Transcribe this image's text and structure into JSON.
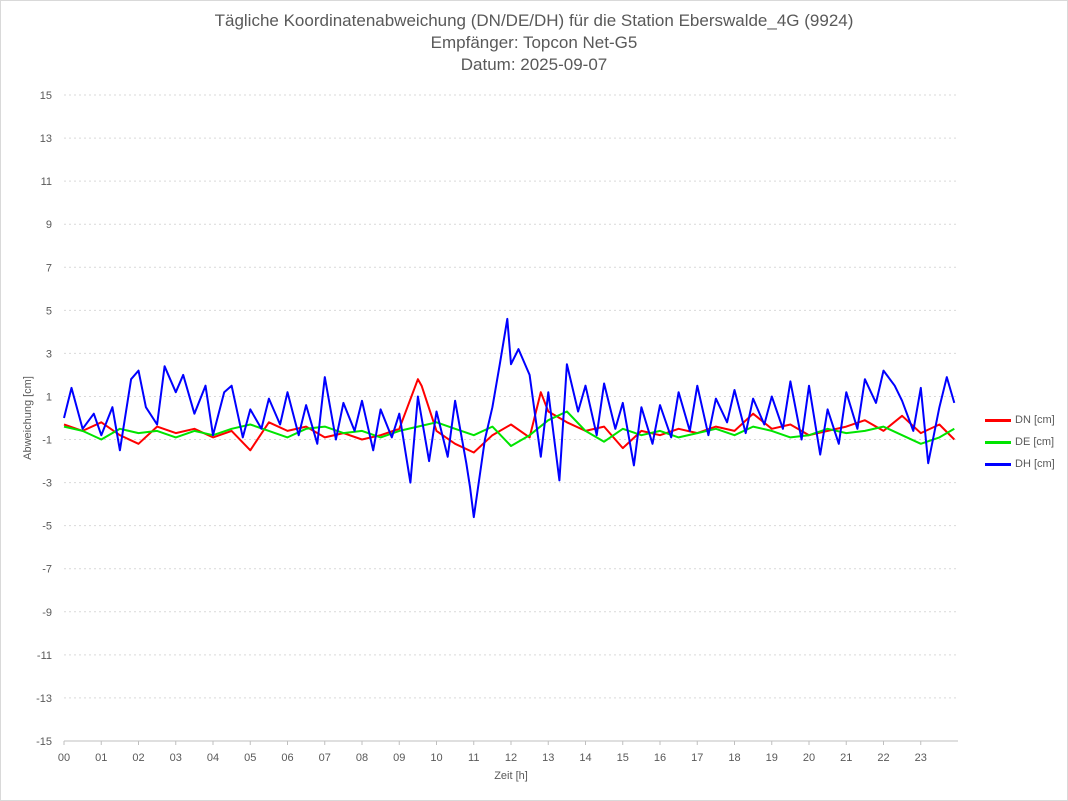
{
  "chart_data": {
    "type": "line",
    "title": [
      "Tägliche Koordinatenabweichung (DN/DE/DH) für die Station Eberswalde_4G (9924)",
      "Empfänger: Topcon Net-G5",
      "Datum: 2025-09-07"
    ],
    "xlabel": "Zeit [h]",
    "ylabel": "Abweichung [cm]",
    "xlim": [
      0,
      24
    ],
    "ylim": [
      -15,
      15
    ],
    "x_ticks": [
      "00",
      "01",
      "02",
      "03",
      "04",
      "05",
      "06",
      "07",
      "08",
      "09",
      "10",
      "11",
      "12",
      "13",
      "14",
      "15",
      "16",
      "17",
      "18",
      "19",
      "20",
      "21",
      "22",
      "23"
    ],
    "y_ticks": [
      "15",
      "13",
      "11",
      "9",
      "7",
      "5",
      "3",
      "1",
      "-1",
      "-3",
      "-5",
      "-7",
      "-9",
      "-11",
      "-13",
      "-15"
    ],
    "grid": true,
    "legend_position": "right",
    "series": [
      {
        "name": "DN [cm]",
        "color": "#ff0000",
        "x": [
          0,
          0.5,
          1,
          1.5,
          2,
          2.5,
          3,
          3.5,
          4,
          4.5,
          5,
          5.5,
          6,
          6.5,
          7,
          7.5,
          8,
          8.5,
          9,
          9.5,
          9.6,
          10,
          10.5,
          11,
          11.5,
          12,
          12.5,
          12.8,
          13,
          13.5,
          14,
          14.5,
          15,
          15.5,
          16,
          16.5,
          17,
          17.5,
          18,
          18.5,
          19,
          19.5,
          20,
          20.5,
          21,
          21.5,
          22,
          22.5,
          23,
          23.5,
          23.9
        ],
        "values": [
          -0.3,
          -0.6,
          -0.2,
          -0.8,
          -1.2,
          -0.4,
          -0.7,
          -0.5,
          -0.9,
          -0.6,
          -1.5,
          -0.2,
          -0.6,
          -0.4,
          -0.9,
          -0.7,
          -1.0,
          -0.8,
          -0.5,
          1.8,
          1.5,
          -0.6,
          -1.2,
          -1.6,
          -0.8,
          -0.3,
          -0.9,
          1.2,
          0.3,
          -0.2,
          -0.6,
          -0.4,
          -1.4,
          -0.6,
          -0.8,
          -0.5,
          -0.7,
          -0.4,
          -0.6,
          0.2,
          -0.5,
          -0.3,
          -0.8,
          -0.6,
          -0.4,
          -0.1,
          -0.6,
          0.1,
          -0.7,
          -0.3,
          -1.0
        ]
      },
      {
        "name": "DE [cm]",
        "color": "#00e400",
        "x": [
          0,
          0.5,
          1,
          1.5,
          2,
          2.5,
          3,
          3.5,
          4,
          4.5,
          5,
          5.5,
          6,
          6.5,
          7,
          7.5,
          8,
          8.5,
          9,
          9.5,
          10,
          10.5,
          11,
          11.5,
          12,
          12.5,
          13,
          13.5,
          14,
          14.5,
          15,
          15.5,
          16,
          16.5,
          17,
          17.5,
          18,
          18.5,
          19,
          19.5,
          20,
          20.5,
          21,
          21.5,
          22,
          22.5,
          23,
          23.5,
          23.9
        ],
        "values": [
          -0.4,
          -0.6,
          -1.0,
          -0.5,
          -0.7,
          -0.6,
          -0.9,
          -0.6,
          -0.8,
          -0.5,
          -0.3,
          -0.6,
          -0.9,
          -0.5,
          -0.4,
          -0.7,
          -0.6,
          -0.9,
          -0.6,
          -0.4,
          -0.2,
          -0.5,
          -0.8,
          -0.4,
          -1.3,
          -0.8,
          -0.1,
          0.3,
          -0.6,
          -1.1,
          -0.5,
          -0.8,
          -0.6,
          -0.9,
          -0.7,
          -0.5,
          -0.8,
          -0.4,
          -0.6,
          -0.9,
          -0.8,
          -0.5,
          -0.7,
          -0.6,
          -0.4,
          -0.8,
          -1.2,
          -0.9,
          -0.5
        ]
      },
      {
        "name": "DH [cm]",
        "color": "#0000ff",
        "x": [
          0,
          0.2,
          0.5,
          0.8,
          1,
          1.3,
          1.5,
          1.8,
          2,
          2.2,
          2.5,
          2.7,
          3,
          3.2,
          3.5,
          3.8,
          4,
          4.3,
          4.5,
          4.8,
          5,
          5.3,
          5.5,
          5.8,
          6,
          6.3,
          6.5,
          6.8,
          7,
          7.3,
          7.5,
          7.8,
          8,
          8.3,
          8.5,
          8.8,
          9,
          9.3,
          9.5,
          9.8,
          10,
          10.3,
          10.5,
          10.8,
          10.9,
          11,
          11.3,
          11.5,
          11.7,
          11.9,
          12,
          12.2,
          12.5,
          12.8,
          13,
          13.3,
          13.5,
          13.8,
          14,
          14.3,
          14.5,
          14.8,
          15,
          15.3,
          15.5,
          15.8,
          16,
          16.3,
          16.5,
          16.8,
          17,
          17.3,
          17.5,
          17.8,
          18,
          18.3,
          18.5,
          18.8,
          19,
          19.3,
          19.5,
          19.8,
          20,
          20.3,
          20.5,
          20.8,
          21,
          21.3,
          21.5,
          21.8,
          22,
          22.3,
          22.5,
          22.8,
          23,
          23.2,
          23.5,
          23.7,
          23.9
        ],
        "values": [
          0,
          1.4,
          -0.5,
          0.2,
          -0.8,
          0.5,
          -1.5,
          1.8,
          2.2,
          0.5,
          -0.3,
          2.4,
          1.2,
          2.0,
          0.2,
          1.5,
          -0.8,
          1.2,
          1.5,
          -0.9,
          0.4,
          -0.5,
          0.9,
          -0.3,
          1.2,
          -0.8,
          0.6,
          -1.2,
          1.9,
          -1.0,
          0.7,
          -0.6,
          0.8,
          -1.5,
          0.4,
          -0.9,
          0.2,
          -3.0,
          1.0,
          -2.0,
          0.3,
          -1.8,
          0.8,
          -2.1,
          -3.2,
          -4.6,
          -1.0,
          0.5,
          2.5,
          4.6,
          2.5,
          3.2,
          2.0,
          -1.8,
          1.2,
          -2.9,
          2.5,
          0.3,
          1.5,
          -0.8,
          1.6,
          -0.5,
          0.7,
          -2.2,
          0.5,
          -1.2,
          0.6,
          -0.9,
          1.2,
          -0.6,
          1.5,
          -0.8,
          0.9,
          -0.2,
          1.3,
          -0.7,
          0.9,
          -0.3,
          1.0,
          -0.5,
          1.7,
          -1.0,
          1.5,
          -1.7,
          0.4,
          -1.2,
          1.2,
          -0.5,
          1.8,
          0.7,
          2.2,
          1.5,
          0.8,
          -0.6,
          1.4,
          -2.1,
          0.5,
          1.9,
          0.7
        ]
      }
    ]
  }
}
